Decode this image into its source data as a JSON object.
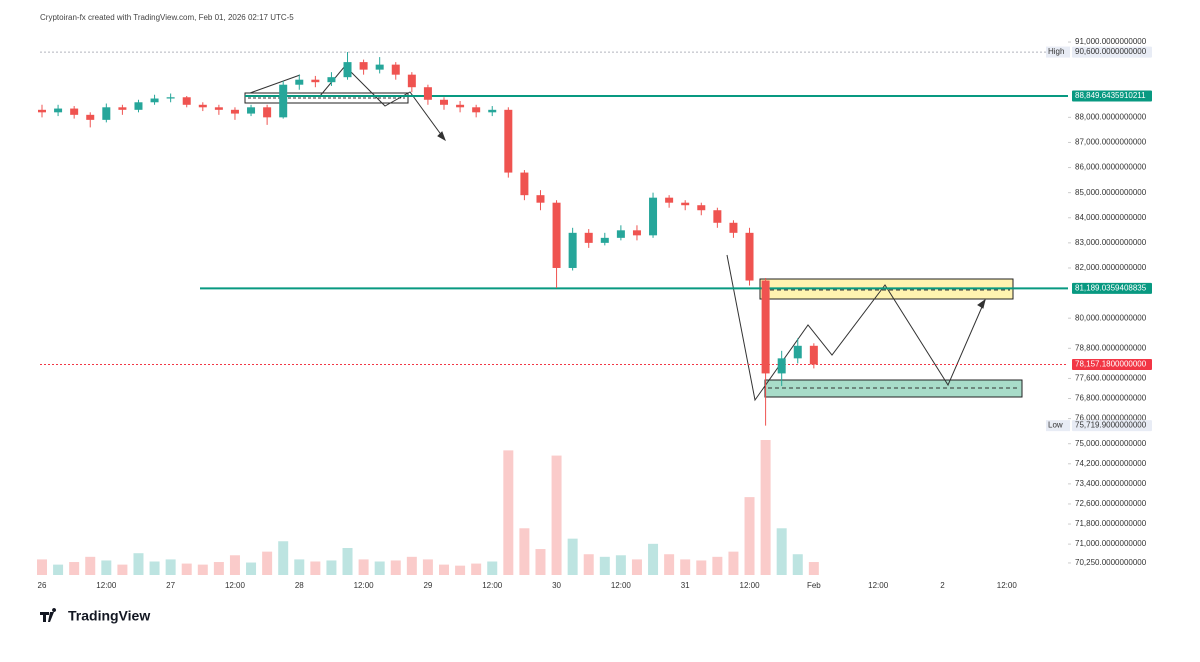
{
  "header": {
    "caption": "Cryptoiran-fx created with TradingView.com, Feb 01, 2026 02:17 UTC-5"
  },
  "footer": {
    "brand": "TradingView"
  },
  "chart_data": {
    "type": "candlestick",
    "categories": [
      "26",
      null,
      null,
      null,
      "12:00",
      null,
      null,
      null,
      "27",
      null,
      null,
      null,
      "12:00",
      null,
      null,
      null,
      "28",
      null,
      null,
      null,
      "12:00",
      null,
      null,
      null,
      "29",
      null,
      null,
      null,
      "12:00",
      null,
      null,
      null,
      "30",
      null,
      null,
      null,
      "12:00",
      null,
      null,
      null,
      "31",
      null,
      null,
      null,
      "12:00",
      null,
      null,
      null,
      "Feb",
      null,
      null,
      null,
      "12:00",
      null,
      null,
      null,
      "2",
      null,
      null,
      null,
      "12:00",
      null,
      null,
      null
    ],
    "open": [
      88300,
      88200,
      88350,
      88100,
      87900,
      88400,
      88300,
      88600,
      88750,
      88800,
      88500,
      88400,
      88300,
      88150,
      88400,
      88000,
      89300,
      89500,
      89400,
      89600,
      90200,
      89900,
      90100,
      89700,
      89200,
      88700,
      88500,
      88400,
      88200,
      88300,
      85800,
      84900,
      84600,
      82000,
      83400,
      83000,
      83200,
      83500,
      83300,
      84800,
      84600,
      84500,
      84300,
      83800,
      83400,
      81500,
      77800,
      78400,
      78900,
      null,
      null,
      null,
      null,
      null,
      null,
      null,
      null,
      null,
      null,
      null,
      null,
      null,
      null,
      null
    ],
    "high": [
      88500,
      88500,
      88450,
      88200,
      88550,
      88500,
      88700,
      88900,
      88950,
      88850,
      88600,
      88500,
      88400,
      88500,
      88500,
      89450,
      89700,
      89650,
      89800,
      90600,
      90300,
      90400,
      90200,
      89800,
      89300,
      88800,
      88650,
      88500,
      88450,
      88400,
      85900,
      85100,
      84700,
      83600,
      83550,
      83400,
      83700,
      83700,
      85000,
      84900,
      84700,
      84600,
      84400,
      83900,
      83600,
      81600,
      78700,
      79200,
      79000,
      null,
      null,
      null,
      null,
      null,
      null,
      null,
      null,
      null,
      null,
      null,
      null,
      null,
      null,
      null
    ],
    "low": [
      88000,
      88050,
      87950,
      87600,
      87800,
      88100,
      88200,
      88500,
      88600,
      88400,
      88250,
      88100,
      87900,
      88050,
      87700,
      87950,
      89100,
      89200,
      89250,
      89500,
      89700,
      89750,
      89500,
      89000,
      88500,
      88300,
      88200,
      88000,
      88050,
      85600,
      84700,
      84300,
      81200,
      81900,
      82800,
      82900,
      83100,
      83100,
      83200,
      84400,
      84300,
      84100,
      83600,
      83200,
      81300,
      75719.9,
      77300,
      78200,
      78000,
      null,
      null,
      null,
      null,
      null,
      null,
      null,
      null,
      null,
      null,
      null,
      null,
      null,
      null,
      null
    ],
    "close": [
      88200,
      88350,
      88100,
      87900,
      88400,
      88300,
      88600,
      88750,
      88800,
      88500,
      88400,
      88300,
      88150,
      88400,
      88000,
      89300,
      89500,
      89400,
      89600,
      90200,
      89900,
      90100,
      89700,
      89200,
      88700,
      88500,
      88400,
      88200,
      88300,
      85800,
      84900,
      84600,
      82000,
      83400,
      83000,
      83200,
      83500,
      83300,
      84800,
      84600,
      84500,
      84300,
      83800,
      83400,
      81500,
      77800,
      78400,
      78900,
      78157.18,
      null,
      null,
      null,
      null,
      null,
      null,
      null,
      null,
      null,
      null,
      null,
      null,
      null,
      null,
      null
    ],
    "volume": [
      300,
      200,
      250,
      350,
      280,
      200,
      420,
      260,
      300,
      220,
      200,
      250,
      380,
      240,
      450,
      650,
      300,
      260,
      280,
      520,
      300,
      260,
      280,
      350,
      300,
      200,
      180,
      220,
      260,
      2400,
      900,
      500,
      2300,
      700,
      400,
      350,
      380,
      300,
      600,
      400,
      300,
      280,
      350,
      450,
      1500,
      2600,
      900,
      400,
      250,
      null,
      null,
      null,
      null,
      null,
      null,
      null,
      null,
      null,
      null,
      null,
      null,
      null,
      null,
      null
    ],
    "up_color": "#26a69a",
    "down_color": "#ef5350",
    "ylim": [
      69770,
      91280
    ],
    "yticks": [
      {
        "value": 91000,
        "label": "91,000.0000000000"
      },
      {
        "value": 88000,
        "label": "88,000.0000000000"
      },
      {
        "value": 87000,
        "label": "87,000.0000000000"
      },
      {
        "value": 86000,
        "label": "86,000.0000000000"
      },
      {
        "value": 85000,
        "label": "85,000.0000000000"
      },
      {
        "value": 84000,
        "label": "84,000.0000000000"
      },
      {
        "value": 83000,
        "label": "83,000.0000000000"
      },
      {
        "value": 82000,
        "label": "82,000.0000000000"
      },
      {
        "value": 80000,
        "label": "80,000.0000000000"
      },
      {
        "value": 78800,
        "label": "78,800.0000000000"
      },
      {
        "value": 77600,
        "label": "77,600.0000000000"
      },
      {
        "value": 76800,
        "label": "76,800.0000000000"
      },
      {
        "value": 76000,
        "label": "76,000.0000000000"
      },
      {
        "value": 75000,
        "label": "75,000.0000000000"
      },
      {
        "value": 74200,
        "label": "74,200.0000000000"
      },
      {
        "value": 73400,
        "label": "73,400.0000000000"
      },
      {
        "value": 72600,
        "label": "72,600.0000000000"
      },
      {
        "value": 71800,
        "label": "71,800.0000000000"
      },
      {
        "value": 71000,
        "label": "71,000.0000000000"
      },
      {
        "value": 70250,
        "label": "70,250.0000000000"
      }
    ],
    "price_lines": [
      {
        "value": 90600,
        "label": "90,600.0000000000",
        "name": "High",
        "color": "#b2b5be",
        "style": "dotted"
      },
      {
        "value": 88849.6435910211,
        "label": "88,849.6435910211",
        "color": "#089981",
        "style": "solid"
      },
      {
        "value": 81189.0359408835,
        "label": "81,189.0359408835",
        "color": "#089981",
        "style": "solid"
      },
      {
        "value": 78157.18,
        "label": "78,157.1800000000",
        "color": "#f23645",
        "style": "dotted"
      },
      {
        "value": 75719.9,
        "label": "75,719.9000000000",
        "name": "Low",
        "color": "#b2b5be",
        "style": "none"
      }
    ]
  }
}
